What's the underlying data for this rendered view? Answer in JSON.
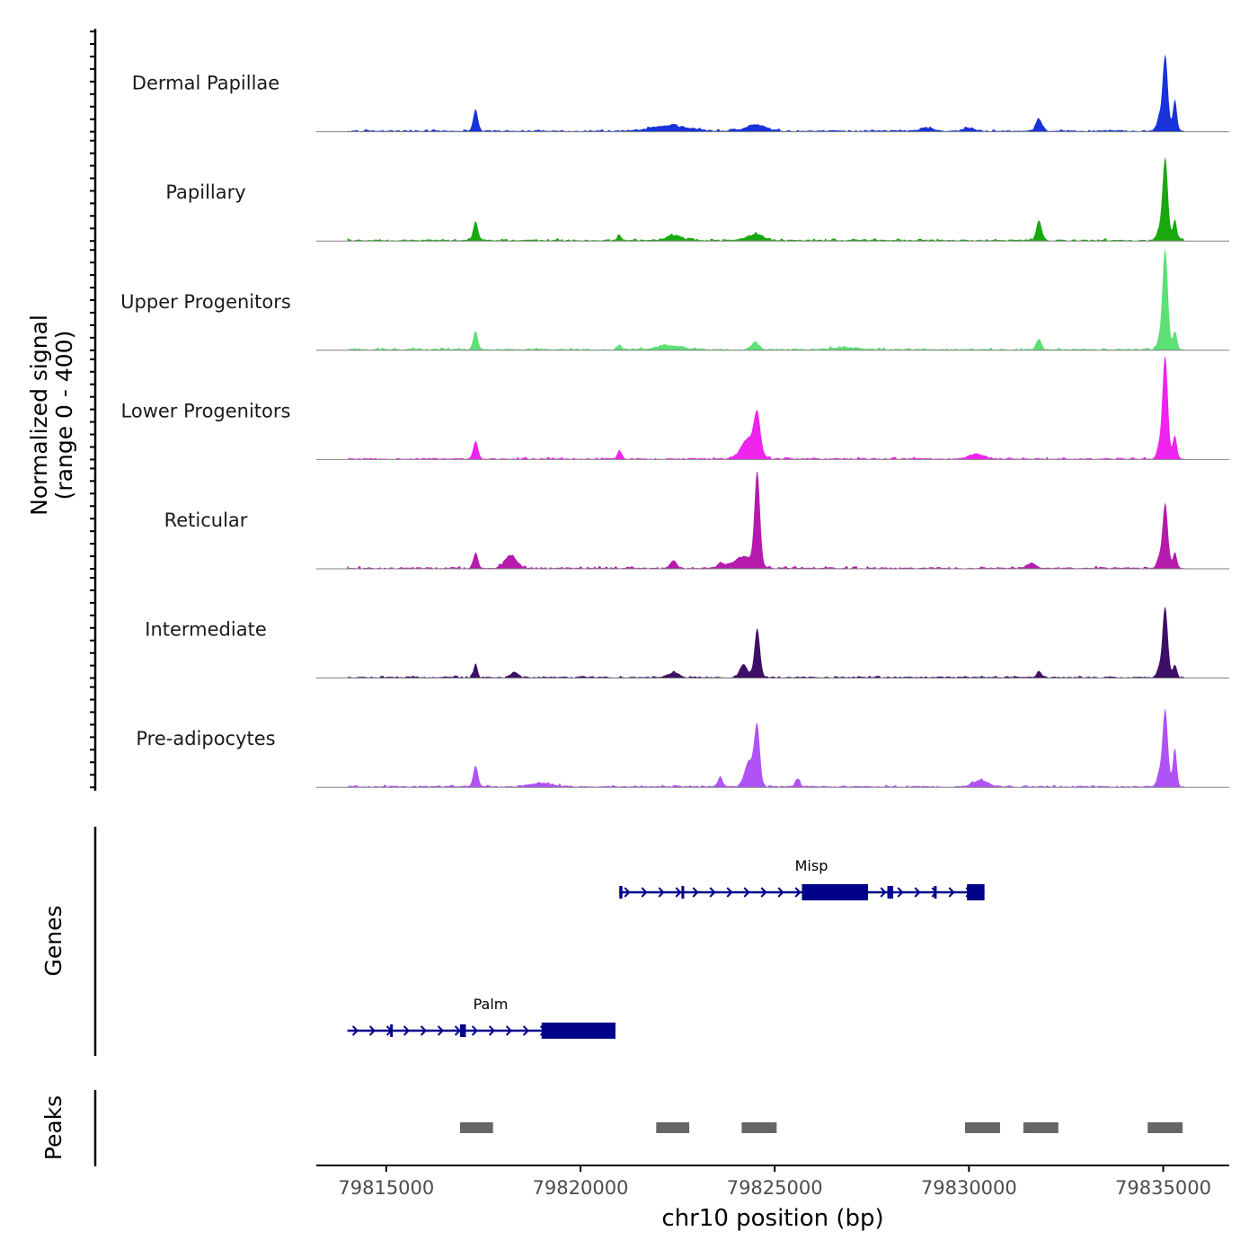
{
  "chart_data": {
    "type": "area",
    "ylabel_lines": [
      "Normalized signal",
      "(range 0 - 400)"
    ],
    "y_range": [
      0,
      400
    ],
    "xlabel": "chr10 position (bp)",
    "xlim": [
      79813200,
      79836700
    ],
    "x_ticks": [
      79815000,
      79820000,
      79825000,
      79830000,
      79835000
    ],
    "x_tick_labels": [
      "79815000",
      "79820000",
      "79825000",
      "79830000",
      "79835000"
    ],
    "tracks": [
      {
        "name": "Dermal Papillae",
        "color": "#1733d9",
        "peaks": [
          [
            79817300,
            85,
            60
          ],
          [
            79822300,
            22,
            450
          ],
          [
            79824500,
            25,
            250
          ],
          [
            79828900,
            14,
            150
          ],
          [
            79830000,
            12,
            150
          ],
          [
            79831800,
            45,
            90
          ],
          [
            79834880,
            45,
            55
          ],
          [
            79835050,
            290,
            70
          ],
          [
            79835300,
            120,
            50
          ]
        ]
      },
      {
        "name": "Papillary",
        "color": "#1aa80f",
        "peaks": [
          [
            79817300,
            72,
            60
          ],
          [
            79821000,
            18,
            60
          ],
          [
            79822400,
            20,
            200
          ],
          [
            79824500,
            25,
            200
          ],
          [
            79831800,
            75,
            70
          ],
          [
            79834880,
            35,
            55
          ],
          [
            79835050,
            320,
            70
          ],
          [
            79835300,
            80,
            50
          ]
        ]
      },
      {
        "name": "Upper Progenitors",
        "color": "#5de075",
        "peaks": [
          [
            79817300,
            70,
            60
          ],
          [
            79821000,
            18,
            60
          ],
          [
            79822300,
            16,
            350
          ],
          [
            79824500,
            28,
            100
          ],
          [
            79826800,
            10,
            300
          ],
          [
            79831800,
            40,
            70
          ],
          [
            79834880,
            30,
            55
          ],
          [
            79835050,
            390,
            70
          ],
          [
            79835300,
            70,
            50
          ]
        ]
      },
      {
        "name": "Lower Progenitors",
        "color": "#f023ee",
        "peaks": [
          [
            79817300,
            70,
            60
          ],
          [
            79821000,
            35,
            50
          ],
          [
            79824350,
            80,
            200
          ],
          [
            79824550,
            140,
            80
          ],
          [
            79830200,
            20,
            200
          ],
          [
            79834880,
            40,
            55
          ],
          [
            79835050,
            400,
            70
          ],
          [
            79835300,
            90,
            50
          ]
        ]
      },
      {
        "name": "Reticular",
        "color": "#b51aad",
        "peaks": [
          [
            79817300,
            60,
            60
          ],
          [
            79818200,
            50,
            150
          ],
          [
            79822400,
            30,
            80
          ],
          [
            79823600,
            20,
            80
          ],
          [
            79824200,
            45,
            250
          ],
          [
            79824550,
            360,
            70
          ],
          [
            79831600,
            20,
            100
          ],
          [
            79834880,
            35,
            55
          ],
          [
            79835050,
            250,
            70
          ],
          [
            79835300,
            60,
            50
          ]
        ]
      },
      {
        "name": "Intermediate",
        "color": "#3d0f66",
        "peaks": [
          [
            79817300,
            55,
            50
          ],
          [
            79818300,
            20,
            100
          ],
          [
            79822400,
            18,
            150
          ],
          [
            79824200,
            50,
            100
          ],
          [
            79824550,
            190,
            70
          ],
          [
            79831800,
            25,
            60
          ],
          [
            79834880,
            30,
            55
          ],
          [
            79835050,
            270,
            70
          ],
          [
            79835300,
            50,
            50
          ]
        ]
      },
      {
        "name": "Pre-adipocytes",
        "color": "#b052f5",
        "peaks": [
          [
            79817300,
            80,
            60
          ],
          [
            79819000,
            15,
            300
          ],
          [
            79823600,
            40,
            60
          ],
          [
            79824350,
            100,
            120
          ],
          [
            79824550,
            220,
            70
          ],
          [
            79825600,
            30,
            60
          ],
          [
            79830300,
            25,
            200
          ],
          [
            79834880,
            45,
            55
          ],
          [
            79835050,
            300,
            70
          ],
          [
            79835300,
            150,
            50
          ]
        ]
      }
    ],
    "genes_label": "Genes",
    "genes": [
      {
        "name": "Misp",
        "strand": "+",
        "start": 79821000,
        "end": 79830400,
        "exons": [
          [
            79821000,
            79821080
          ],
          [
            79822600,
            79822660
          ],
          [
            79825700,
            79827400
          ],
          [
            79827900,
            79828050
          ],
          [
            79829100,
            79829150
          ],
          [
            79829950,
            79830400
          ]
        ]
      },
      {
        "name": "Palm",
        "strand": "+",
        "start": 79814000,
        "end": 79820900,
        "exons": [
          [
            79815100,
            79815160
          ],
          [
            79816900,
            79817050
          ],
          [
            79819000,
            79820900
          ]
        ]
      }
    ],
    "peaks_label": "Peaks",
    "peak_regions": [
      [
        79816900,
        79817750
      ],
      [
        79821950,
        79822800
      ],
      [
        79824150,
        79825050
      ],
      [
        79829900,
        79830800
      ],
      [
        79831400,
        79832300
      ],
      [
        79834600,
        79835500
      ]
    ]
  }
}
